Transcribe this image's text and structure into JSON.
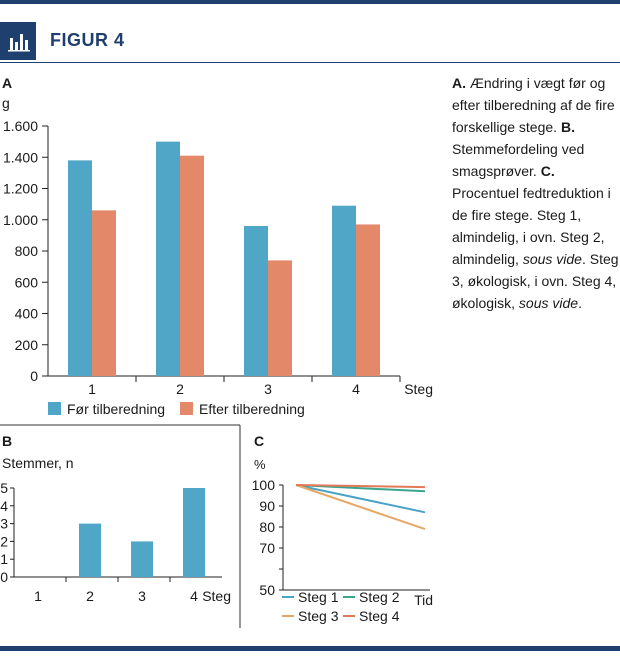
{
  "header": {
    "title": "FIGUR 4",
    "icon": "bar-chart-icon"
  },
  "colors": {
    "navy": "#1f3f6e",
    "blue": "#4fa6c7",
    "salmon": "#e4886a",
    "green": "#3aa58c",
    "light_blue": "#4aa3c6",
    "orange": "#e8a764",
    "coral": "#e27a58"
  },
  "caption": {
    "a_label": "A.",
    "a_text": " Ændring i vægt før og efter tilberedning af de fire forskellige stege. ",
    "b_label": "B.",
    "b_text": " Stemmefordeling ved smagsprøver. ",
    "c_label": "C.",
    "c_text": " Procentuel fedtreduktion i de fire stege. Steg 1, almindelig, i ovn. Steg 2, almindelig, ",
    "sous_vide_1": "sous vide",
    "c_text2": ". Steg 3, økologisk, i ovn. Steg 4, økologisk, ",
    "sous_vide_2": "sous vide",
    "end": "."
  },
  "chart_data": [
    {
      "panel": "A",
      "type": "bar",
      "ylabel": "g",
      "xlabel": "Steg",
      "categories": [
        "1",
        "2",
        "3",
        "4"
      ],
      "ylim": [
        0,
        1600
      ],
      "yticks": [
        0,
        200,
        400,
        600,
        800,
        1000,
        1200,
        1400,
        1600
      ],
      "ytick_labels": [
        "0",
        "200",
        "400",
        "600",
        "800",
        "1.000",
        "1.200",
        "1.400",
        "1.600"
      ],
      "series": [
        {
          "name": "Før tilberedning",
          "color": "#4fa6c7",
          "values": [
            1380,
            1500,
            960,
            1090
          ]
        },
        {
          "name": "Efter tilberedning",
          "color": "#e4886a",
          "values": [
            1060,
            1410,
            740,
            970
          ]
        }
      ],
      "legend": "bottom"
    },
    {
      "panel": "B",
      "type": "bar",
      "ylabel": "Stemmer, n",
      "xlabel": "Steg",
      "categories": [
        "1",
        "2",
        "3",
        "4"
      ],
      "ylim": [
        0,
        5
      ],
      "yticks": [
        0,
        1,
        2,
        3,
        4,
        5
      ],
      "values": [
        0,
        3,
        2,
        5
      ],
      "color": "#4fa6c7"
    },
    {
      "panel": "C",
      "type": "line",
      "ylabel": "%",
      "xlabel": "Tid",
      "ylim": [
        50,
        100
      ],
      "yticks": [
        50,
        60,
        70,
        80,
        90,
        100
      ],
      "ytick_labels": [
        "50",
        "",
        "70",
        "80",
        "90",
        "100"
      ],
      "x": [
        0,
        1
      ],
      "series": [
        {
          "name": "Steg 1",
          "color": "#4aa3c6",
          "values": [
            100,
            87
          ]
        },
        {
          "name": "Steg 2",
          "color": "#3aa58c",
          "values": [
            100,
            97
          ]
        },
        {
          "name": "Steg 3",
          "color": "#e8a764",
          "values": [
            100,
            79
          ]
        },
        {
          "name": "Steg 4",
          "color": "#e27a58",
          "values": [
            100,
            99
          ]
        }
      ],
      "legend": "bottom"
    }
  ]
}
